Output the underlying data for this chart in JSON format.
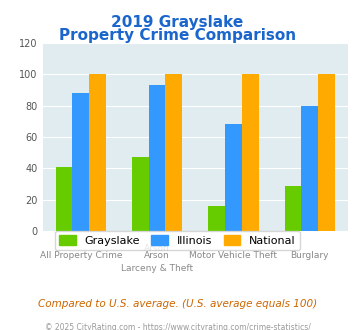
{
  "title_line1": "2019 Grayslake",
  "title_line2": "Property Crime Comparison",
  "categories": [
    "All Property Crime",
    "Arson\nLarceny & Theft",
    "Motor Vehicle Theft",
    "Burglary"
  ],
  "category_labels_top": [
    "All Property Crime",
    "Arson",
    "Motor Vehicle Theft",
    "Burglary"
  ],
  "category_labels_bottom": [
    "",
    "Larceny & Theft",
    "",
    ""
  ],
  "grayslake": [
    41,
    47,
    16,
    29
  ],
  "illinois": [
    88,
    93,
    68,
    80
  ],
  "national": [
    100,
    100,
    100,
    100
  ],
  "colors": {
    "grayslake": "#66cc00",
    "illinois": "#3399ff",
    "national": "#ffaa00"
  },
  "ylim": [
    0,
    120
  ],
  "yticks": [
    0,
    20,
    40,
    60,
    80,
    100,
    120
  ],
  "background_color": "#e0ecf0",
  "title_color": "#1a66cc",
  "subtitle_note": "Compared to U.S. average. (U.S. average equals 100)",
  "footer": "© 2025 CityRating.com - https://www.cityrating.com/crime-statistics/",
  "subtitle_color": "#cc6600",
  "footer_color": "#999999"
}
